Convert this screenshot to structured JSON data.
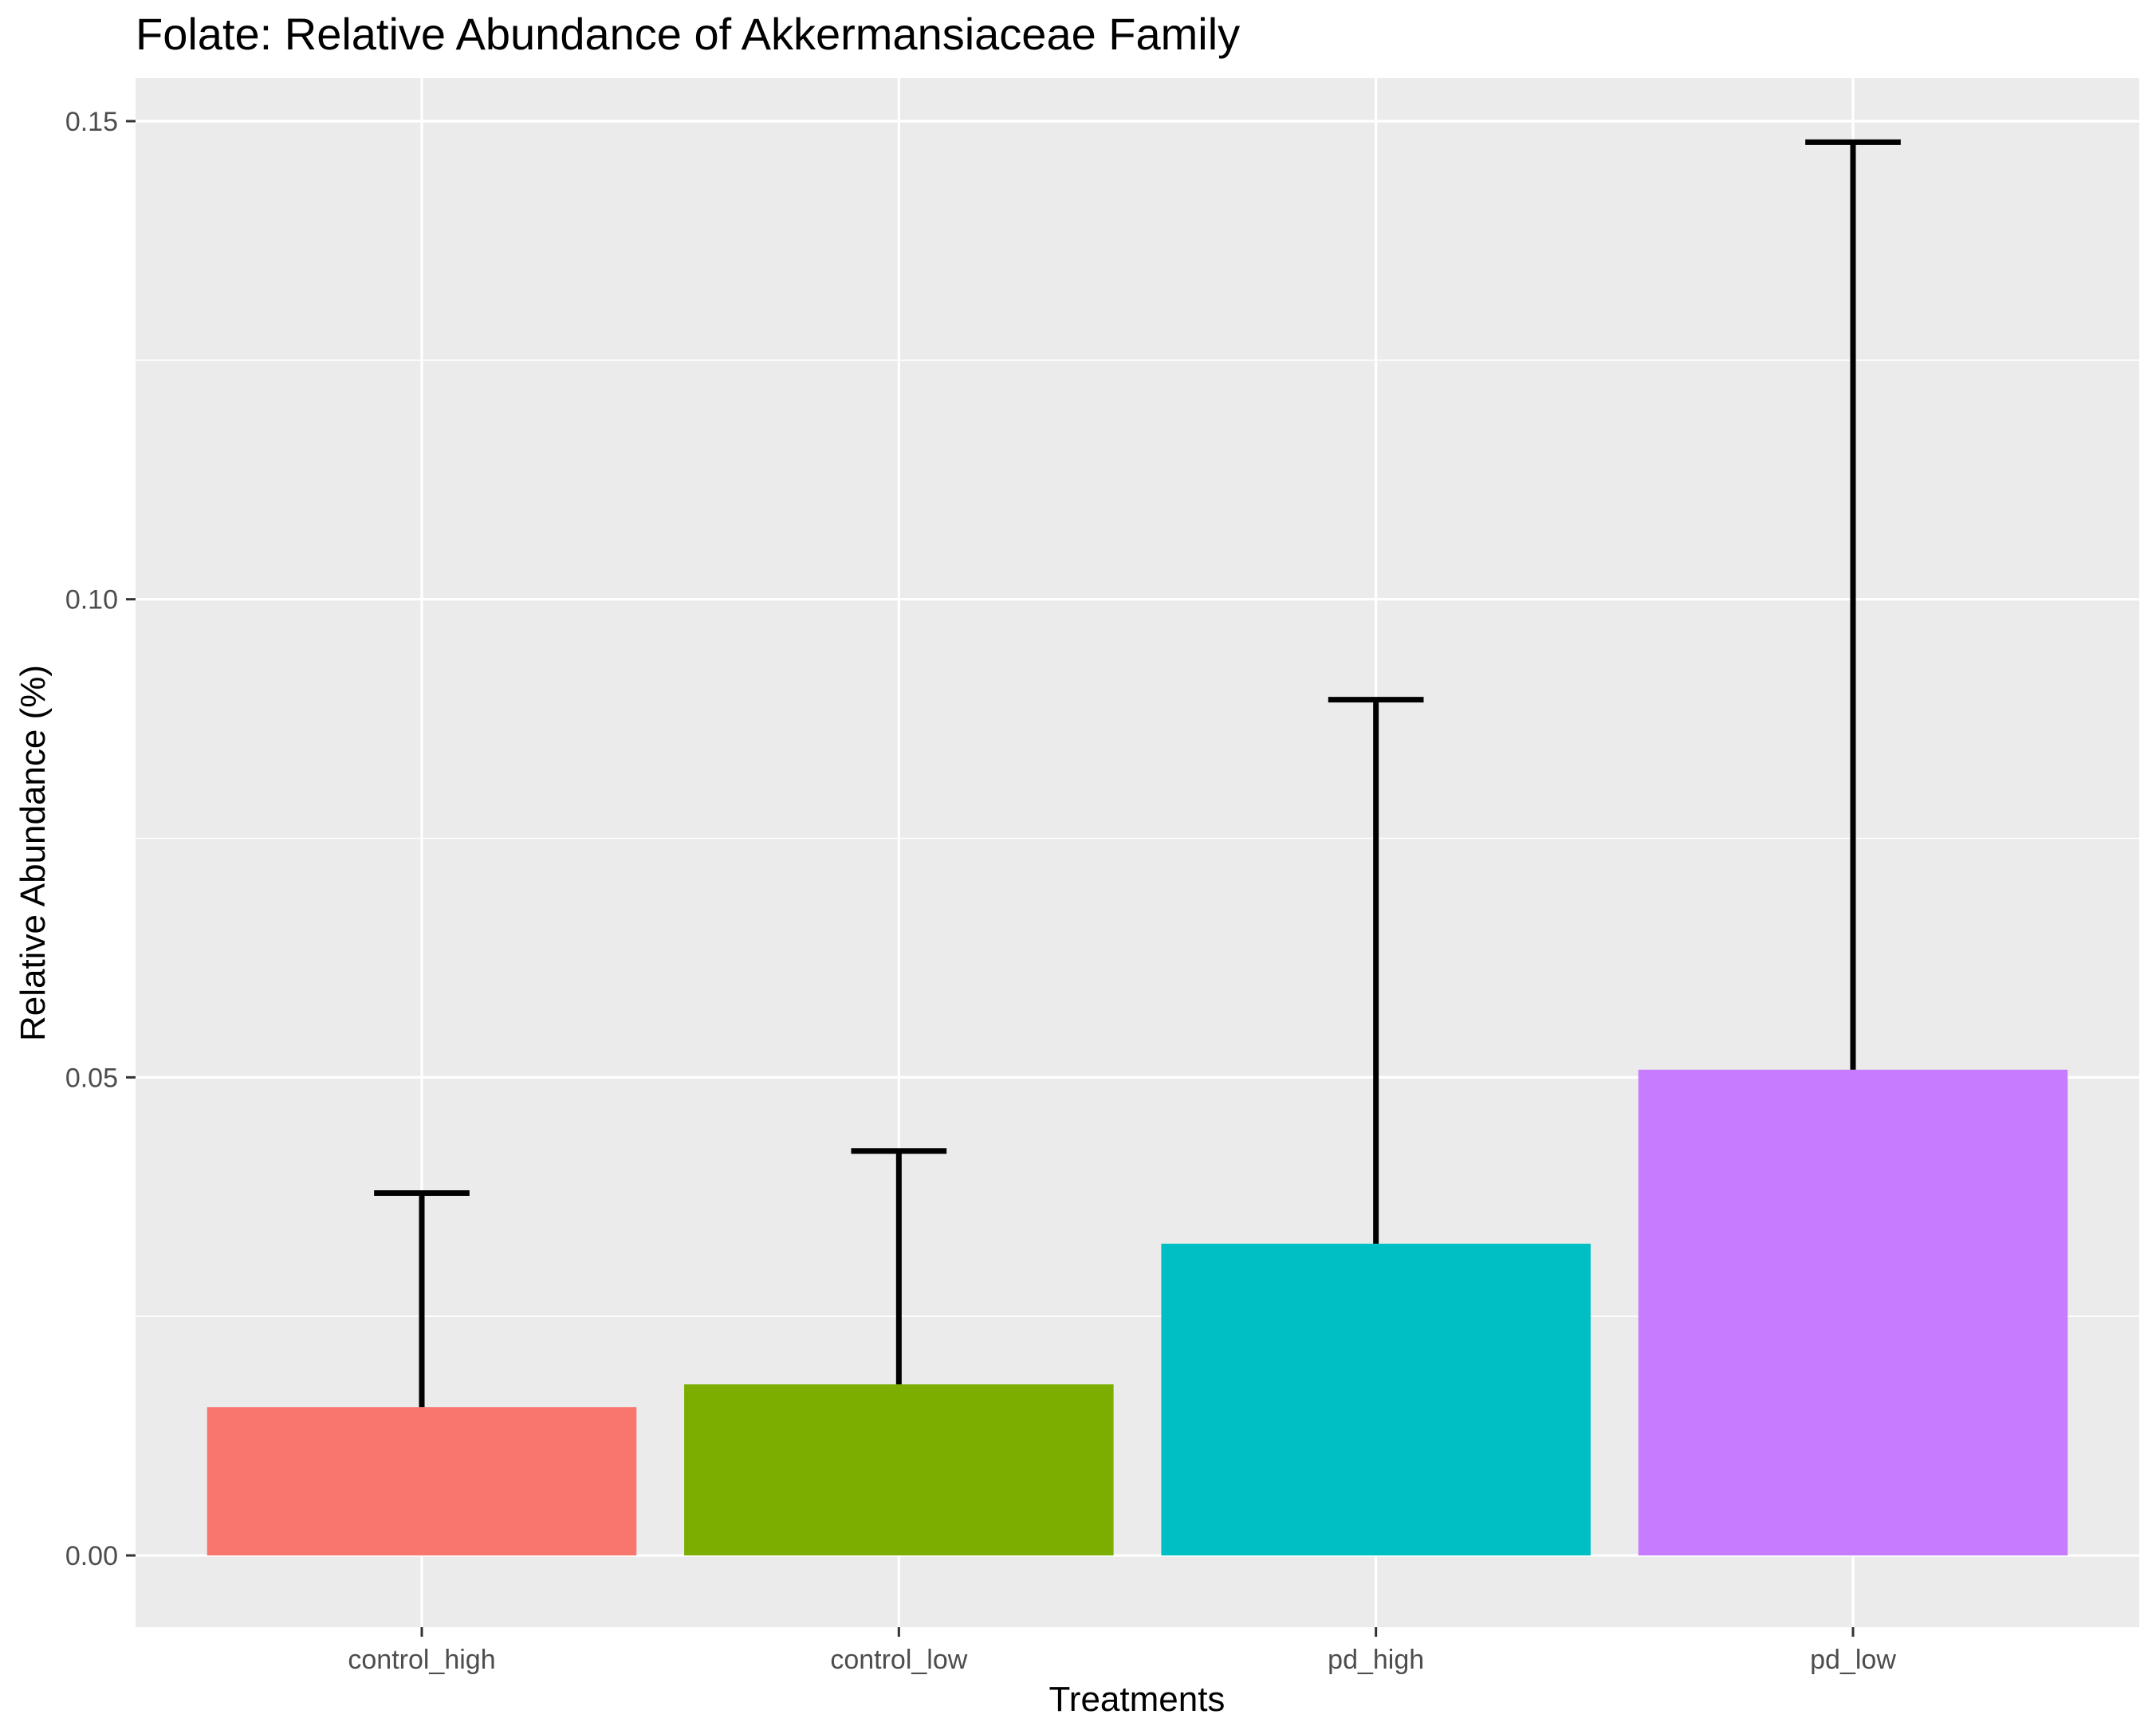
{
  "chart_data": {
    "type": "bar",
    "title": "Folate: Relative Abundance of Akkermansiaceae Family",
    "xlabel": "Treatments",
    "ylabel": "Relative Abundance (%)",
    "categories": [
      "control_high",
      "control_low",
      "pd_high",
      "pd_low"
    ],
    "values": [
      0.0155,
      0.0179,
      0.0326,
      0.0508
    ],
    "error_upper": [
      0.0379,
      0.0423,
      0.0895,
      0.1478
    ],
    "colors": [
      "#F8766D",
      "#7CAE00",
      "#00BFC4",
      "#C77CFF"
    ],
    "ylim": [
      -0.0075,
      0.1545
    ],
    "yticks": [
      0.0,
      0.05,
      0.1,
      0.15
    ],
    "ytick_labels": [
      "0.00",
      "0.05",
      "0.10",
      "0.15"
    ],
    "grid": true,
    "legend": "none",
    "panel_background": "#EBEBEB",
    "errorbar_color": "#000000"
  }
}
